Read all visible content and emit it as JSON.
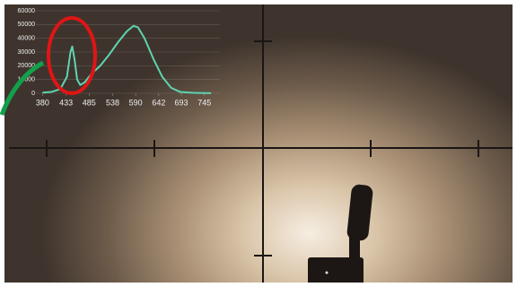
{
  "chart_data": {
    "type": "line",
    "x": [
      380,
      400,
      420,
      435,
      443,
      447,
      452,
      458,
      465,
      475,
      490,
      510,
      530,
      550,
      570,
      585,
      595,
      610,
      630,
      650,
      670,
      690,
      720,
      760
    ],
    "series": [
      {
        "color": "#5fd3b0",
        "values": [
          500,
          1000,
          3000,
          12000,
          30000,
          34000,
          25000,
          10000,
          6000,
          8000,
          14000,
          20000,
          28000,
          37000,
          45000,
          49000,
          48000,
          40000,
          25000,
          12000,
          4000,
          1000,
          300,
          100
        ]
      }
    ],
    "xlim": [
      365,
      780
    ],
    "xticks": [
      380,
      433,
      485,
      538,
      590,
      642,
      693,
      745
    ],
    "ylim": [
      0,
      60000
    ],
    "yticks": [
      0,
      10000,
      20000,
      30000,
      40000,
      50000,
      60000
    ],
    "grid": true
  }
}
